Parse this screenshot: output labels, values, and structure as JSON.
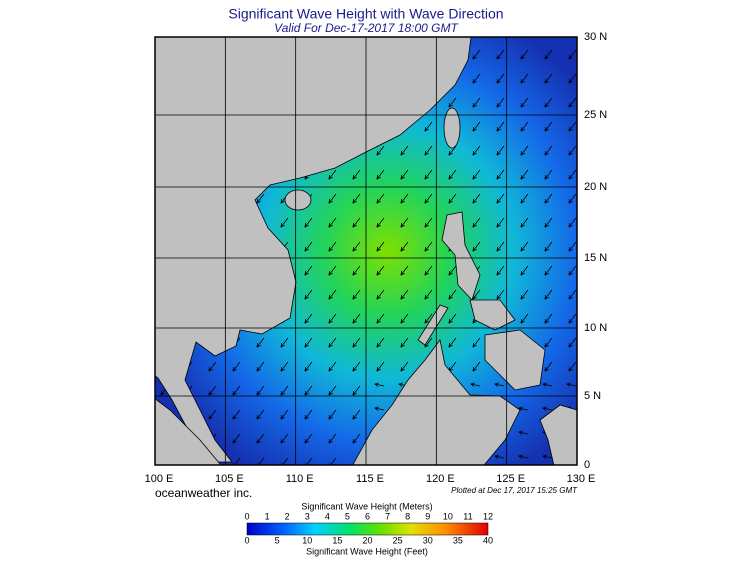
{
  "title": "Significant Wave Height with Wave Direction",
  "subtitle": "Valid For Dec-17-2017 18:00 GMT",
  "map": {
    "lon_labels": [
      "100 E",
      "105 E",
      "110 E",
      "115 E",
      "120 E",
      "125 E",
      "130 E"
    ],
    "lat_labels": [
      "30 N",
      "25 N",
      "20 N",
      "15 N",
      "10 N",
      "5 N",
      "0"
    ]
  },
  "credit": "oceanweather inc.",
  "plotted": "Plotted at Dec 17, 2017 15:25 GMT",
  "colorbar": {
    "title_top": "Significant Wave Height (Meters)",
    "meters": [
      0,
      1,
      2,
      3,
      4,
      5,
      6,
      7,
      8,
      9,
      10,
      11,
      12
    ],
    "feet": [
      0,
      5,
      10,
      15,
      20,
      25,
      30,
      35,
      40
    ],
    "title_bottom": "Significant Wave Height (Feet)"
  }
}
